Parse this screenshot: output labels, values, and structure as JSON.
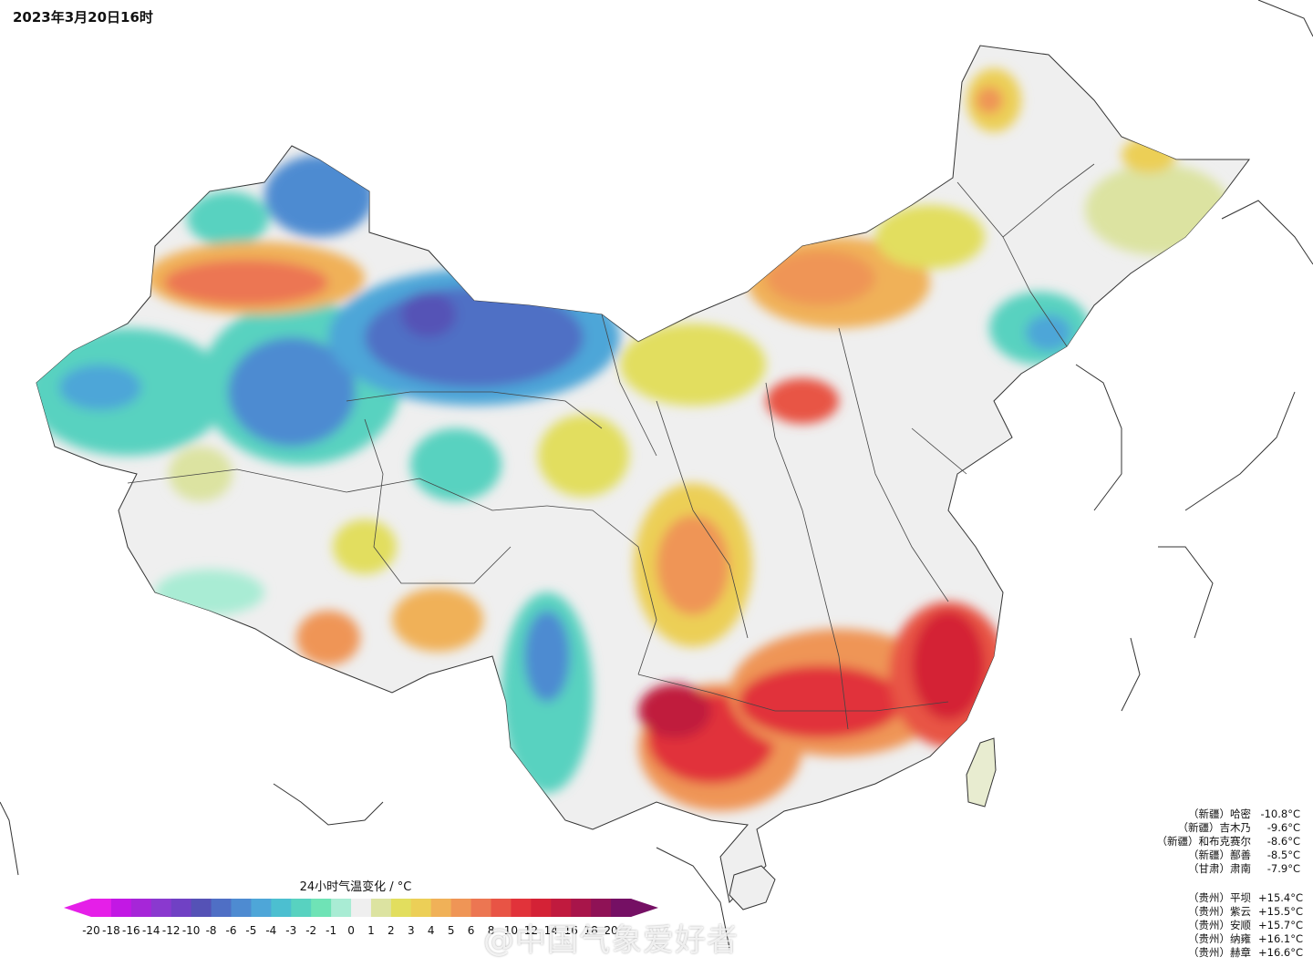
{
  "title": "2023年3月20日16时",
  "legend": {
    "title": "24小时气温变化 / °C",
    "levels": [
      "-20",
      "-18",
      "-16",
      "-14",
      "-12",
      "-10",
      "-8",
      "-6",
      "-5",
      "-4",
      "-3",
      "-2",
      "-1",
      "0",
      "1",
      "2",
      "3",
      "4",
      "5",
      "6",
      "8",
      "10",
      "12",
      "14",
      "16",
      "18",
      "20"
    ],
    "colors": [
      "#e51fe8",
      "#c218e4",
      "#a626d8",
      "#8a39cf",
      "#7041c4",
      "#5552b6",
      "#4f6fc5",
      "#4e8bd1",
      "#4ea6d8",
      "#4cbfd0",
      "#58d2c0",
      "#6fe3b6",
      "#a9ecd4",
      "#efefef",
      "#dce3a1",
      "#e2de5e",
      "#eccf57",
      "#f0b158",
      "#ef9556",
      "#ec7652",
      "#e85445",
      "#e1333a",
      "#d42236",
      "#c01a3e",
      "#a8154a",
      "#8f1256",
      "#751064"
    ],
    "arrow_left_color": "#e51fe8",
    "arrow_right_color": "#751064"
  },
  "stations": {
    "cold": [
      {
        "name": "（新疆）哈密",
        "value": "-10.8°C"
      },
      {
        "name": "（新疆）吉木乃",
        "value": "-9.6°C"
      },
      {
        "name": "（新疆）和布克赛尔",
        "value": "-8.6°C"
      },
      {
        "name": "（新疆）鄯善",
        "value": "-8.5°C"
      },
      {
        "name": "（甘肃）肃南",
        "value": "-7.9°C"
      }
    ],
    "warm": [
      {
        "name": "（贵州）平坝",
        "value": "+15.4°C"
      },
      {
        "name": "（贵州）紫云",
        "value": "+15.5°C"
      },
      {
        "name": "（贵州）安顺",
        "value": "+15.7°C"
      },
      {
        "name": "（贵州）纳雍",
        "value": "+16.1°C"
      },
      {
        "name": "（贵州）赫章",
        "value": "+16.6°C"
      }
    ]
  },
  "watermark": "@中国气象爱好者"
}
